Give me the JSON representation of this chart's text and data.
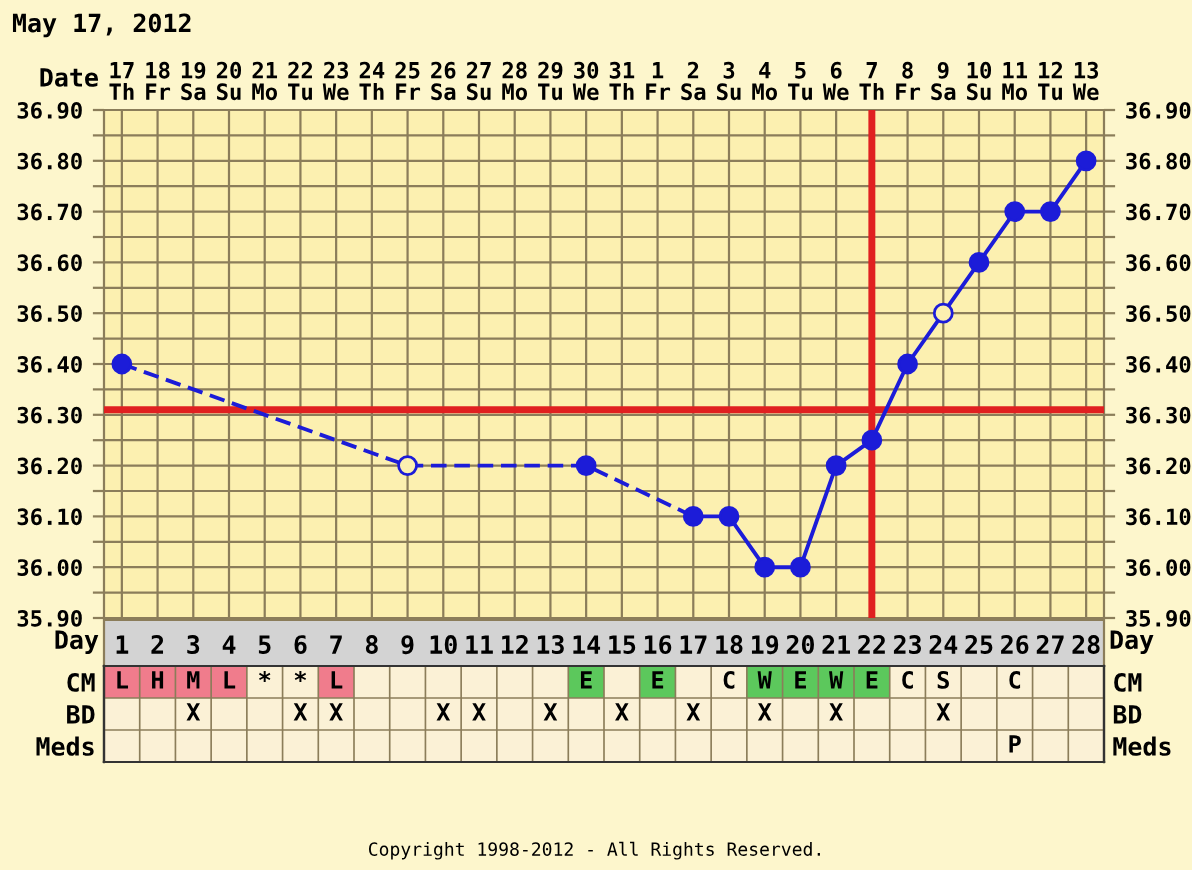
{
  "chart_data": [
    {
      "type": "line",
      "title": "May 17, 2012",
      "xlabel": "Day",
      "x2label": "Date",
      "xlim": [
        0.5,
        28.5
      ],
      "xticks": [
        1,
        2,
        3,
        4,
        5,
        6,
        7,
        8,
        9,
        10,
        11,
        12,
        13,
        14,
        15,
        16,
        17,
        18,
        19,
        20,
        21,
        22,
        23,
        24,
        25,
        26,
        27,
        28
      ],
      "x2lim": [
        "2012-05-16T12:00",
        "2012-06-13T12:00"
      ],
      "x2ticks": [
        {
          "value": "2012-05-17",
          "label": "17\nTh"
        },
        {
          "value": "2012-05-18",
          "label": "18\nFr"
        },
        {
          "value": "2012-05-19",
          "label": "19\nSa"
        },
        {
          "value": "2012-05-20",
          "label": "20\nSu"
        },
        {
          "value": "2012-05-21",
          "label": "21\nMo"
        },
        {
          "value": "2012-05-22",
          "label": "22\nTu"
        },
        {
          "value": "2012-05-23",
          "label": "23\nWe"
        },
        {
          "value": "2012-05-24",
          "label": "24\nTh"
        },
        {
          "value": "2012-05-25",
          "label": "25\nFr"
        },
        {
          "value": "2012-05-26",
          "label": "26\nSa"
        },
        {
          "value": "2012-05-27",
          "label": "27\nSu"
        },
        {
          "value": "2012-05-28",
          "label": "28\nMo"
        },
        {
          "value": "2012-05-29",
          "label": "29\nTu"
        },
        {
          "value": "2012-05-30",
          "label": "30\nWe"
        },
        {
          "value": "2012-05-31",
          "label": "31\nTh"
        },
        {
          "value": "2012-06-01",
          "label": "1\nFr"
        },
        {
          "value": "2012-06-02",
          "label": "2\nSa"
        },
        {
          "value": "2012-06-03",
          "label": "3\nSu"
        },
        {
          "value": "2012-06-04",
          "label": "4\nMo"
        },
        {
          "value": "2012-06-05",
          "label": "5\nTu"
        },
        {
          "value": "2012-06-06",
          "label": "6\nWe"
        },
        {
          "value": "2012-06-07",
          "label": "7\nTh"
        },
        {
          "value": "2012-06-08",
          "label": "8\nFr"
        },
        {
          "value": "2012-06-09",
          "label": "9\nSa"
        },
        {
          "value": "2012-06-10",
          "label": "10\nSu"
        },
        {
          "value": "2012-06-11",
          "label": "11\nMo"
        },
        {
          "value": "2012-06-12",
          "label": "12\nTu"
        },
        {
          "value": "2012-06-13",
          "label": "13\nWe"
        }
      ],
      "ylim": [
        35.9,
        36.9
      ],
      "yticks": [
        {
          "value": 35.9,
          "label": "35.90"
        },
        {
          "value": 35.95,
          "label": null
        },
        {
          "value": 36.0,
          "label": "36.00"
        },
        {
          "value": 36.05,
          "label": null
        },
        {
          "value": 36.1,
          "label": "36.10"
        },
        {
          "value": 36.15,
          "label": null
        },
        {
          "value": 36.2,
          "label": "36.20"
        },
        {
          "value": 36.25,
          "label": null
        },
        {
          "value": 36.3,
          "label": "36.30"
        },
        {
          "value": 36.35,
          "label": null
        },
        {
          "value": 36.4,
          "label": "36.40"
        },
        {
          "value": 36.45,
          "label": null
        },
        {
          "value": 36.5,
          "label": "36.50"
        },
        {
          "value": 36.55,
          "label": null
        },
        {
          "value": 36.6,
          "label": "36.60"
        },
        {
          "value": 36.65,
          "label": null
        },
        {
          "value": 36.7,
          "label": "36.70"
        },
        {
          "value": 36.75,
          "label": null
        },
        {
          "value": 36.8,
          "label": "36.80"
        },
        {
          "value": 36.85,
          "label": null
        },
        {
          "value": 36.9,
          "label": "36.90"
        }
      ],
      "y2lim": [
        35.9,
        36.9
      ],
      "y2ticks": [
        {
          "value": 35.9,
          "label": "35.90"
        },
        {
          "value": 35.95,
          "label": null
        },
        {
          "value": 36.0,
          "label": "36.00"
        },
        {
          "value": 36.05,
          "label": null
        },
        {
          "value": 36.1,
          "label": "36.10"
        },
        {
          "value": 36.15,
          "label": null
        },
        {
          "value": 36.2,
          "label": "36.20"
        },
        {
          "value": 36.25,
          "label": null
        },
        {
          "value": 36.3,
          "label": "36.30"
        },
        {
          "value": 36.35,
          "label": null
        },
        {
          "value": 36.4,
          "label": "36.40"
        },
        {
          "value": 36.45,
          "label": null
        },
        {
          "value": 36.5,
          "label": "36.50"
        },
        {
          "value": 36.55,
          "label": null
        },
        {
          "value": 36.6,
          "label": "36.60"
        },
        {
          "value": 36.65,
          "label": null
        },
        {
          "value": 36.7,
          "label": "36.70"
        },
        {
          "value": 36.75,
          "label": null
        },
        {
          "value": 36.8,
          "label": "36.80"
        },
        {
          "value": 36.85,
          "label": null
        },
        {
          "value": 36.9,
          "label": "36.90"
        }
      ],
      "grid": true,
      "series": [
        {
          "type": "line",
          "color": "#1c1cd8",
          "line_style": "dashed",
          "marker": "none",
          "x": [
            1,
            9,
            14,
            17
          ],
          "values": [
            36.4,
            36.2,
            36.2,
            36.1
          ]
        },
        {
          "type": "line",
          "color": "#1c1cd8",
          "line_style": "solid",
          "marker": "none",
          "x": [
            17,
            18,
            19,
            20,
            21,
            22,
            23,
            24,
            25,
            26,
            27,
            28
          ],
          "values": [
            36.1,
            36.1,
            36.0,
            36.0,
            36.2,
            36.25,
            36.4,
            36.5,
            36.6,
            36.7,
            36.7,
            36.8
          ]
        },
        {
          "type": "scatter",
          "color": "#1c1cd8",
          "marker": "circle",
          "x": [
            1,
            14,
            17,
            18,
            19,
            20,
            21,
            22,
            23,
            25,
            26,
            27,
            28
          ],
          "values": [
            36.4,
            36.2,
            36.1,
            36.1,
            36.0,
            36.0,
            36.2,
            36.25,
            36.4,
            36.6,
            36.7,
            36.7,
            36.8
          ]
        },
        {
          "type": "scatter",
          "color": "#fcf0b0",
          "marker": "circle",
          "x": [
            9,
            24
          ],
          "values": [
            36.2,
            36.5
          ]
        }
      ],
      "ref_lines": [
        {
          "axis": "y",
          "value": 36.31,
          "label": null,
          "color": "#e02020"
        },
        {
          "axis": "x",
          "value": 22,
          "label": null,
          "color": "#e02020"
        }
      ],
      "annotations": [
        "Copyright 1998-2012 - All Rights Reserved."
      ]
    },
    {
      "type": "heatmap",
      "categories": [
        null,
        null,
        null,
        null,
        null,
        null,
        null,
        null,
        null,
        null,
        null,
        null,
        null,
        null,
        null,
        null,
        null,
        null,
        null,
        null,
        null,
        null,
        null,
        null,
        null,
        null,
        null,
        null
      ],
      "y_categories": [
        "CM",
        "BD",
        "Meds"
      ],
      "y2_categories": [
        "CM",
        "BD",
        "Meds"
      ],
      "cells": [
        [
          null,
          null,
          null,
          null,
          null,
          null,
          null,
          null,
          null,
          null,
          null,
          null,
          null,
          null,
          null,
          null,
          null,
          null,
          null,
          null,
          null,
          null,
          null,
          null,
          null,
          null,
          null,
          null
        ],
        [
          null,
          null,
          null,
          null,
          null,
          null,
          null,
          null,
          null,
          null,
          null,
          null,
          null,
          null,
          null,
          null,
          null,
          null,
          null,
          null,
          null,
          null,
          null,
          null,
          null,
          null,
          null,
          null
        ],
        [
          null,
          null,
          null,
          null,
          null,
          null,
          null,
          null,
          null,
          null,
          null,
          null,
          null,
          null,
          null,
          null,
          null,
          null,
          null,
          null,
          null,
          null,
          null,
          null,
          null,
          null,
          null,
          null
        ]
      ],
      "cell_labels": [
        [
          "L",
          "H",
          "M",
          "L",
          "*",
          "*",
          "L",
          null,
          null,
          null,
          null,
          null,
          null,
          "E",
          null,
          "E",
          null,
          "C",
          "W",
          "E",
          "W",
          "E",
          "C",
          "S",
          null,
          "C",
          null,
          null
        ],
        [
          null,
          null,
          "X",
          null,
          null,
          "X",
          "X",
          null,
          null,
          "X",
          "X",
          null,
          "X",
          null,
          "X",
          null,
          "X",
          null,
          "X",
          null,
          "X",
          null,
          null,
          "X",
          null,
          null,
          null,
          null
        ],
        [
          null,
          null,
          null,
          null,
          null,
          null,
          null,
          null,
          null,
          null,
          null,
          null,
          null,
          null,
          null,
          null,
          null,
          null,
          null,
          null,
          null,
          null,
          null,
          null,
          null,
          "P",
          null,
          null
        ]
      ],
      "colors": [
        [
          "#f07c8c",
          "#f07c8c",
          "#f07c8c",
          "#f07c8c",
          null,
          null,
          "#f07c8c",
          null,
          null,
          null,
          null,
          null,
          null,
          "#5cc85c",
          null,
          "#5cc85c",
          null,
          null,
          "#5cc85c",
          "#5cc85c",
          "#5cc85c",
          "#5cc85c",
          null,
          null,
          null,
          null,
          null,
          null
        ],
        [
          null,
          null,
          null,
          null,
          null,
          null,
          null,
          null,
          null,
          null,
          null,
          null,
          null,
          null,
          null,
          null,
          null,
          null,
          null,
          null,
          null,
          null,
          null,
          null,
          null,
          null,
          null,
          null
        ],
        [
          null,
          null,
          null,
          null,
          null,
          null,
          null,
          null,
          null,
          null,
          null,
          null,
          null,
          null,
          null,
          null,
          null,
          null,
          null,
          null,
          null,
          null,
          null,
          null,
          null,
          null,
          null,
          null
        ]
      ]
    }
  ]
}
